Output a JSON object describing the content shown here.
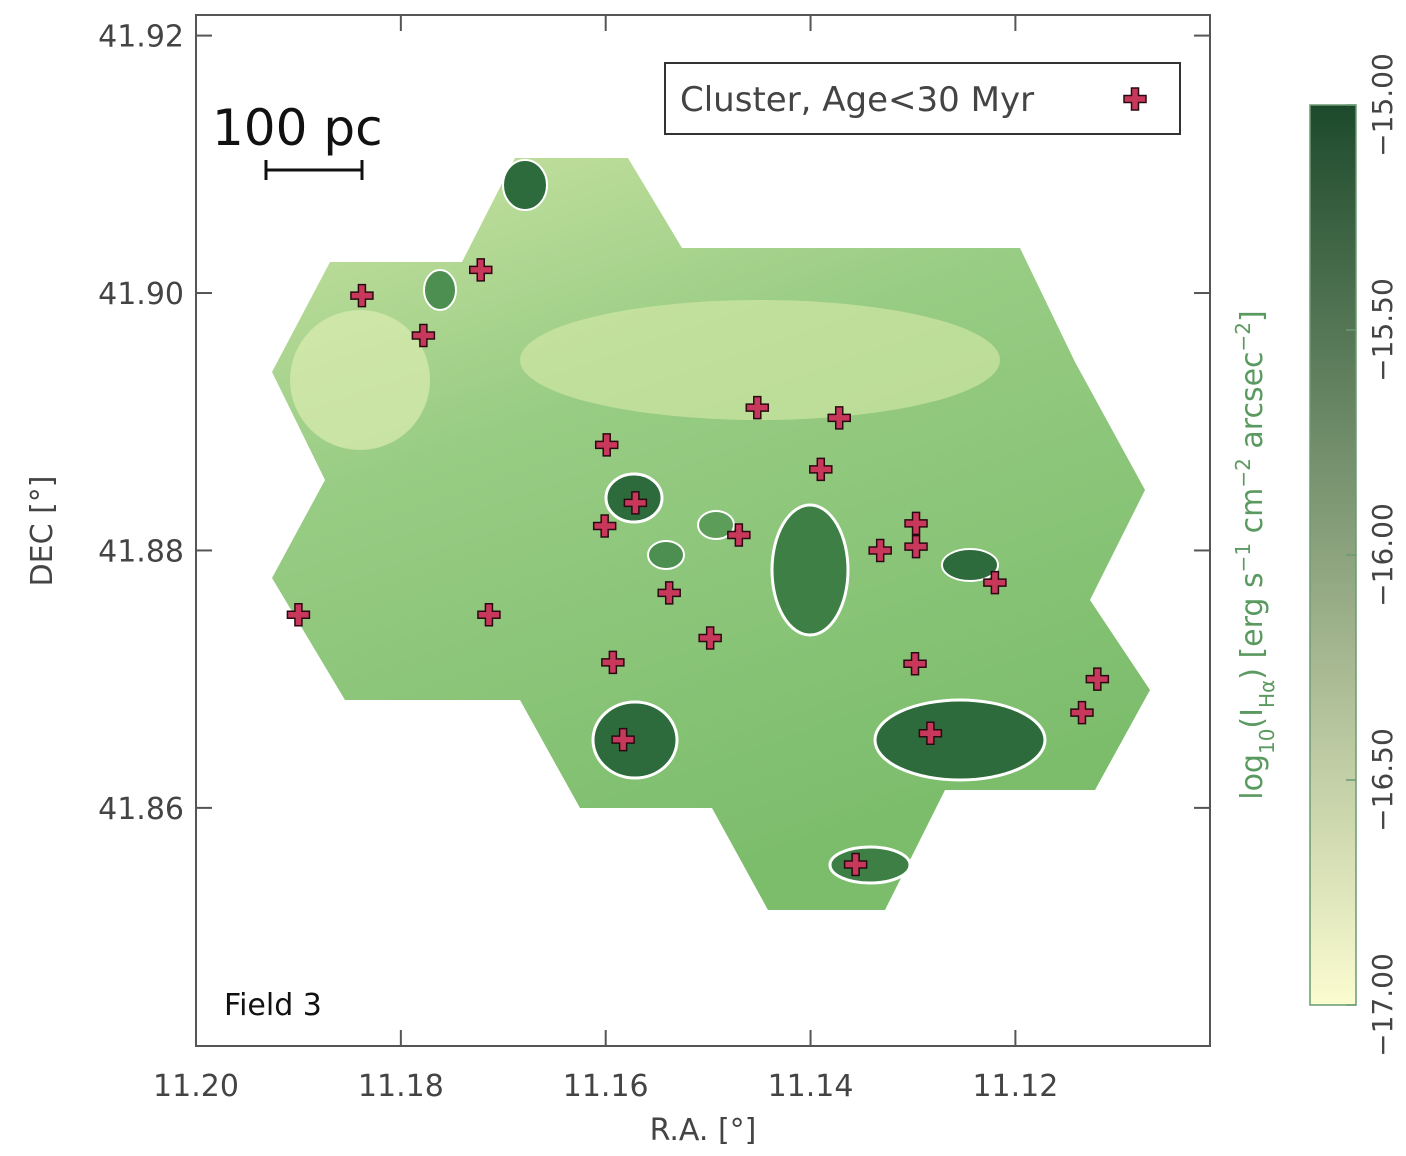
{
  "chart_data": {
    "type": "scatter",
    "x_label": "R.A. [°]",
    "y_label": "DEC [°]",
    "xlim": [
      11.2,
      11.101
    ],
    "ylim": [
      41.8415,
      41.9216
    ],
    "xticks": [
      {
        "value": 11.2,
        "label": "11.20"
      },
      {
        "value": 11.18,
        "label": "11.18"
      },
      {
        "value": 11.16,
        "label": "11.16"
      },
      {
        "value": 11.14,
        "label": "11.14"
      },
      {
        "value": 11.12,
        "label": "11.12"
      }
    ],
    "yticks": [
      {
        "value": 41.92,
        "label": "41.92"
      },
      {
        "value": 41.9,
        "label": "41.90"
      },
      {
        "value": 41.88,
        "label": "41.88"
      },
      {
        "value": 41.86,
        "label": "41.86"
      }
    ],
    "annotations": [
      "100 pc",
      "Field 3"
    ],
    "series": [
      {
        "name": "Cluster, Age<30 Myr",
        "color": "#c8385a",
        "x": [
          11.1838,
          11.1722,
          11.1778,
          11.1452,
          11.1372,
          11.139,
          11.1599,
          11.1571,
          11.1601,
          11.147,
          11.1332,
          11.1297,
          11.1297,
          11.122,
          11.1538,
          11.19,
          11.1714,
          11.1498,
          11.1593,
          11.1298,
          11.112,
          11.1135,
          11.1283,
          11.1583,
          11.1356
        ],
        "values": [
          41.8998,
          41.9018,
          41.8967,
          41.8911,
          41.8903,
          41.8863,
          41.8882,
          41.8837,
          41.8819,
          41.8812,
          41.88,
          41.8821,
          41.8803,
          41.8775,
          41.8767,
          41.875,
          41.875,
          41.8732,
          41.8713,
          41.8712,
          41.87,
          41.8674,
          41.8658,
          41.8653,
          41.8556
        ]
      }
    ],
    "colorbar": {
      "label_parts": [
        "log",
        "10",
        "(I",
        "Hα",
        ") [erg s",
        "−1",
        " cm",
        "−2",
        " arcsec",
        "−2",
        "]"
      ],
      "clim": [
        -17,
        -15
      ],
      "colors": [
        "#fbfcd0",
        "#1d4a2c"
      ],
      "ticks": [
        {
          "value": -15,
          "label": "−15.00"
        },
        {
          "value": -15.5,
          "label": "−15.50"
        },
        {
          "value": -16,
          "label": "−16.00"
        },
        {
          "value": -16.5,
          "label": "−16.50"
        },
        {
          "value": -17,
          "label": "−17.00"
        }
      ]
    }
  }
}
